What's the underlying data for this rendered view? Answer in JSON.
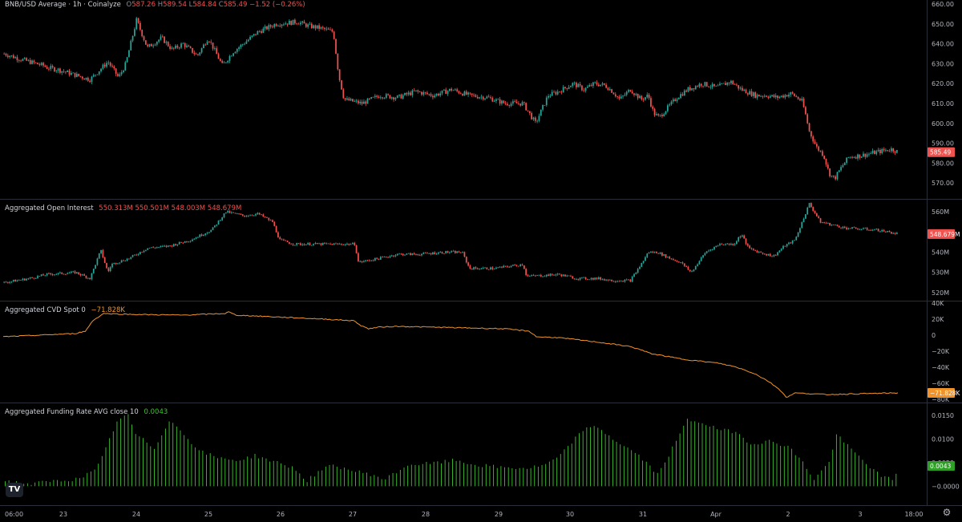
{
  "chart_data": [
    {
      "type": "candlestick",
      "title": "BNB/USD Average · 1h · Coinalyze",
      "ohlc_labels": [
        "O",
        "H",
        "L",
        "C"
      ],
      "ohlc": [
        "587.26",
        "589.54",
        "584.84",
        "585.49"
      ],
      "change": "−1.52 (−0.26%)",
      "last_value": "585.49",
      "ylim": [
        562,
        662
      ],
      "yticks": [
        "660.00",
        "650.00",
        "640.00",
        "630.00",
        "620.00",
        "610.00",
        "600.00",
        "590.00",
        "580.00",
        "570.00"
      ],
      "ytick_values": [
        660,
        650,
        640,
        630,
        620,
        610,
        600,
        590,
        580,
        570
      ],
      "path": [
        [
          0,
          635
        ],
        [
          10,
          632
        ],
        [
          22,
          629
        ],
        [
          24,
          628
        ],
        [
          30,
          627
        ],
        [
          48,
          622
        ],
        [
          58,
          631
        ],
        [
          64,
          623
        ],
        [
          68,
          630
        ],
        [
          74,
          652
        ],
        [
          80,
          638
        ],
        [
          88,
          643
        ],
        [
          94,
          637
        ],
        [
          100,
          640
        ],
        [
          108,
          634
        ],
        [
          114,
          643
        ],
        [
          122,
          629
        ],
        [
          128,
          636
        ],
        [
          142,
          646
        ],
        [
          152,
          650
        ],
        [
          164,
          651
        ],
        [
          170,
          649
        ],
        [
          176,
          648
        ],
        [
          184,
          646
        ],
        [
          187,
          624
        ],
        [
          190,
          612
        ],
        [
          200,
          610
        ],
        [
          210,
          614
        ],
        [
          220,
          613
        ],
        [
          230,
          616
        ],
        [
          240,
          614
        ],
        [
          250,
          617
        ],
        [
          260,
          614
        ],
        [
          270,
          613
        ],
        [
          280,
          610
        ],
        [
          290,
          610
        ],
        [
          297,
          600
        ],
        [
          300,
          606
        ],
        [
          304,
          614
        ],
        [
          310,
          616
        ],
        [
          318,
          620
        ],
        [
          324,
          617
        ],
        [
          330,
          620
        ],
        [
          336,
          619
        ],
        [
          340,
          616
        ],
        [
          344,
          612
        ],
        [
          350,
          617
        ],
        [
          356,
          612
        ],
        [
          360,
          614
        ],
        [
          363,
          605
        ],
        [
          366,
          603
        ],
        [
          370,
          607
        ],
        [
          376,
          613
        ],
        [
          382,
          617
        ],
        [
          390,
          620
        ],
        [
          398,
          618
        ],
        [
          406,
          621
        ],
        [
          412,
          617
        ],
        [
          420,
          614
        ],
        [
          426,
          614
        ],
        [
          432,
          613
        ],
        [
          440,
          615
        ],
        [
          446,
          611
        ],
        [
          448,
          604
        ],
        [
          450,
          596
        ],
        [
          454,
          588
        ],
        [
          458,
          584
        ],
        [
          461,
          575
        ],
        [
          464,
          572
        ],
        [
          468,
          578
        ],
        [
          472,
          583
        ],
        [
          480,
          584
        ],
        [
          490,
          586
        ],
        [
          496,
          587
        ],
        [
          500,
          585.5
        ]
      ]
    },
    {
      "type": "candlestick",
      "title": "Aggregated Open Interest",
      "ohlc": [
        "550.313M",
        "550.501M",
        "548.003M",
        "548.679M"
      ],
      "last_value": "548.679M",
      "ylim": [
        516,
        566
      ],
      "yticks": [
        "560M",
        "550M",
        "540M",
        "530M",
        "520M"
      ],
      "ytick_values": [
        560,
        550,
        540,
        530,
        520
      ],
      "path": [
        [
          0,
          525
        ],
        [
          14,
          527
        ],
        [
          24,
          529
        ],
        [
          40,
          530
        ],
        [
          48,
          527
        ],
        [
          54,
          541
        ],
        [
          58,
          530
        ],
        [
          60,
          534
        ],
        [
          70,
          537
        ],
        [
          80,
          542
        ],
        [
          92,
          543
        ],
        [
          104,
          546
        ],
        [
          116,
          551
        ],
        [
          124,
          560
        ],
        [
          134,
          558
        ],
        [
          142,
          559
        ],
        [
          150,
          555
        ],
        [
          154,
          546
        ],
        [
          162,
          544
        ],
        [
          170,
          544
        ],
        [
          180,
          544
        ],
        [
          196,
          544
        ],
        [
          198,
          535
        ],
        [
          210,
          537
        ],
        [
          220,
          539
        ],
        [
          232,
          539
        ],
        [
          246,
          540
        ],
        [
          256,
          540
        ],
        [
          260,
          532
        ],
        [
          274,
          532
        ],
        [
          290,
          534
        ],
        [
          292,
          528
        ],
        [
          310,
          529
        ],
        [
          320,
          527
        ],
        [
          332,
          527
        ],
        [
          340,
          526
        ],
        [
          350,
          526
        ],
        [
          356,
          534
        ],
        [
          360,
          540
        ],
        [
          365,
          540
        ],
        [
          372,
          537
        ],
        [
          378,
          535
        ],
        [
          384,
          530
        ],
        [
          392,
          540
        ],
        [
          400,
          544
        ],
        [
          408,
          544
        ],
        [
          412,
          549
        ],
        [
          416,
          542
        ],
        [
          422,
          540
        ],
        [
          430,
          538
        ],
        [
          436,
          543
        ],
        [
          442,
          546
        ],
        [
          446,
          555
        ],
        [
          450,
          564
        ],
        [
          456,
          555
        ],
        [
          470,
          552
        ],
        [
          488,
          551
        ],
        [
          500,
          549
        ]
      ]
    },
    {
      "type": "line",
      "title": "Aggregated CVD Spot 0",
      "last_value": "−71.828K",
      "ylim": [
        -84000,
        42000
      ],
      "yticks": [
        "40K",
        "20K",
        "0",
        "−20K",
        "−40K",
        "−60K",
        "−80K"
      ],
      "ytick_values": [
        40000,
        20000,
        0,
        -20000,
        -40000,
        -60000,
        -80000
      ],
      "color": "#f0932b",
      "path": [
        [
          0,
          -2000
        ],
        [
          20,
          0
        ],
        [
          40,
          2000
        ],
        [
          46,
          5000
        ],
        [
          50,
          18000
        ],
        [
          56,
          27000
        ],
        [
          70,
          26000
        ],
        [
          100,
          25000
        ],
        [
          124,
          27000
        ],
        [
          126,
          29000
        ],
        [
          130,
          25000
        ],
        [
          160,
          22000
        ],
        [
          180,
          20000
        ],
        [
          196,
          18000
        ],
        [
          200,
          12000
        ],
        [
          204,
          8000
        ],
        [
          210,
          10000
        ],
        [
          220,
          11000
        ],
        [
          240,
          10000
        ],
        [
          260,
          9000
        ],
        [
          280,
          8000
        ],
        [
          294,
          5000
        ],
        [
          298,
          -2000
        ],
        [
          310,
          -3000
        ],
        [
          330,
          -8000
        ],
        [
          350,
          -14000
        ],
        [
          356,
          -18000
        ],
        [
          362,
          -23000
        ],
        [
          380,
          -30000
        ],
        [
          400,
          -35000
        ],
        [
          410,
          -40000
        ],
        [
          420,
          -48000
        ],
        [
          428,
          -58000
        ],
        [
          434,
          -68000
        ],
        [
          438,
          -78000
        ],
        [
          442,
          -72000
        ],
        [
          460,
          -74000
        ],
        [
          480,
          -73000
        ],
        [
          500,
          -72000
        ]
      ]
    },
    {
      "type": "bar",
      "title": "Aggregated Funding Rate AVG close 10",
      "last_value": "0.0043",
      "ylim": [
        -0.004,
        0.0175
      ],
      "yticks": [
        "0.0150",
        "0.0100",
        "0.0050",
        "−0.0000"
      ],
      "ytick_values": [
        0.015,
        0.01,
        0.005,
        0
      ],
      "color": "#3fc42f",
      "path": [
        [
          0,
          0.0012
        ],
        [
          6,
          0.0008
        ],
        [
          14,
          0.0005
        ],
        [
          24,
          0.001
        ],
        [
          38,
          0.0015
        ],
        [
          48,
          0.0032
        ],
        [
          52,
          0.006
        ],
        [
          60,
          0.0138
        ],
        [
          66,
          0.015
        ],
        [
          70,
          0.011
        ],
        [
          80,
          0.008
        ],
        [
          88,
          0.014
        ],
        [
          96,
          0.011
        ],
        [
          104,
          0.0075
        ],
        [
          114,
          0.006
        ],
        [
          126,
          0.0055
        ],
        [
          134,
          0.0065
        ],
        [
          142,
          0.0055
        ],
        [
          154,
          0.004
        ],
        [
          162,
          0.0012
        ],
        [
          168,
          0.003
        ],
        [
          176,
          0.0045
        ],
        [
          184,
          0.0035
        ],
        [
          196,
          0.0025
        ],
        [
          204,
          0.0015
        ],
        [
          216,
          0.0045
        ],
        [
          228,
          0.0048
        ],
        [
          242,
          0.0055
        ],
        [
          252,
          0.0045
        ],
        [
          266,
          0.004
        ],
        [
          280,
          0.0038
        ],
        [
          290,
          0.0045
        ],
        [
          298,
          0.0065
        ],
        [
          310,
          0.012
        ],
        [
          318,
          0.0125
        ],
        [
          326,
          0.01
        ],
        [
          340,
          0.0065
        ],
        [
          350,
          0.0025
        ],
        [
          358,
          0.008
        ],
        [
          366,
          0.014
        ],
        [
          374,
          0.0135
        ],
        [
          382,
          0.012
        ],
        [
          392,
          0.0115
        ],
        [
          400,
          0.009
        ],
        [
          410,
          0.0095
        ],
        [
          420,
          0.0085
        ],
        [
          428,
          0.005
        ],
        [
          434,
          0.0015
        ],
        [
          442,
          0.005
        ],
        [
          446,
          0.011
        ],
        [
          452,
          0.0085
        ],
        [
          462,
          0.0048
        ],
        [
          470,
          0.002
        ],
        [
          476,
          0.0015
        ],
        [
          480,
          0.0043
        ]
      ]
    }
  ],
  "x_axis": {
    "ticks": [
      "06:00",
      "23",
      "24",
      "25",
      "26",
      "27",
      "28",
      "29",
      "30",
      "31",
      "Apr",
      "2",
      "3",
      "18:00"
    ]
  },
  "logo_text": "TV",
  "icons": [
    "tradingview-logo-icon",
    "settings-gear-icon"
  ],
  "colors": {
    "up": "#26a69a",
    "down": "#ef5350",
    "cvd": "#f0932b",
    "funding": "#3fc42f",
    "last_price_tag": "#ef5350",
    "cvd_tag": "#f0932b",
    "funding_tag": "#2e9e26"
  }
}
